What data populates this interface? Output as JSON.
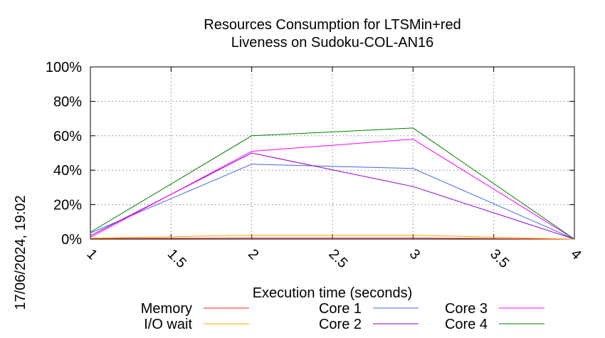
{
  "chart_data": {
    "type": "line",
    "title_lines": [
      "Resources Consumption for LTSMin+red",
      "Liveness on Sudoku-COL-AN16"
    ],
    "xlabel": "Execution time (seconds)",
    "ylabel": "",
    "xlim": [
      1,
      4
    ],
    "ylim": [
      0,
      100
    ],
    "x_ticks": [
      {
        "value": 1,
        "label": "1"
      },
      {
        "value": 1.5,
        "label": "1.5"
      },
      {
        "value": 2,
        "label": "2"
      },
      {
        "value": 2.5,
        "label": "2.5"
      },
      {
        "value": 3,
        "label": "3"
      },
      {
        "value": 3.5,
        "label": "3.5"
      },
      {
        "value": 4,
        "label": "4"
      }
    ],
    "y_ticks": [
      {
        "value": 0,
        "label": "0%"
      },
      {
        "value": 20,
        "label": "20%"
      },
      {
        "value": 40,
        "label": "40%"
      },
      {
        "value": 60,
        "label": "60%"
      },
      {
        "value": 80,
        "label": "80%"
      },
      {
        "value": 100,
        "label": "100%"
      }
    ],
    "grid": true,
    "legend_position": "bottom",
    "timestamp": "17/06/2024, 19:02",
    "x": [
      1,
      2,
      3,
      4
    ],
    "series": [
      {
        "name": "Memory",
        "color": "#ff2020",
        "values": [
          0.3,
          0.6,
          0.6,
          0
        ]
      },
      {
        "name": "I/O wait",
        "color": "#ffa500",
        "values": [
          0.5,
          2.2,
          2.2,
          0
        ]
      },
      {
        "name": "Core 1",
        "color": "#4169e1",
        "values": [
          3.5,
          43.5,
          41,
          0
        ]
      },
      {
        "name": "Core 2",
        "color": "#9400d3",
        "values": [
          2,
          50,
          30.5,
          0
        ]
      },
      {
        "name": "Core 3",
        "color": "#ff00ff",
        "values": [
          1,
          51,
          58,
          0
        ]
      },
      {
        "name": "Core 4",
        "color": "#008000",
        "values": [
          4,
          60,
          64.5,
          0
        ]
      }
    ]
  }
}
